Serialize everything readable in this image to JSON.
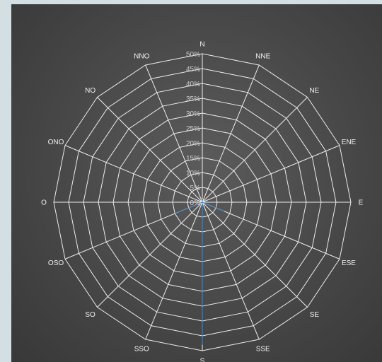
{
  "chart_data": {
    "type": "radar",
    "title": "",
    "categories": [
      "N",
      "NNE",
      "NE",
      "ENE",
      "E",
      "ESE",
      "SE",
      "SSE",
      "S",
      "SSO",
      "SO",
      "OSO",
      "O",
      "ONO",
      "NO",
      "NNO"
    ],
    "tick_labels": [
      "0%",
      "5%",
      "10%",
      "15%",
      "20%",
      "25%",
      "30%",
      "35%",
      "40%",
      "45%",
      "50%"
    ],
    "r_range": [
      0,
      0.5
    ],
    "r_step": 0.05,
    "series": [
      {
        "values": [
          0.01,
          0.0,
          0.0,
          0.0,
          0.0,
          0.08,
          0.0,
          0.0,
          0.48,
          0.0,
          0.0,
          0.1,
          0.0,
          0.0,
          0.0,
          0.0
        ],
        "color": "#5b9bd5",
        "filled": true
      }
    ],
    "grid": true,
    "legend": "none"
  }
}
